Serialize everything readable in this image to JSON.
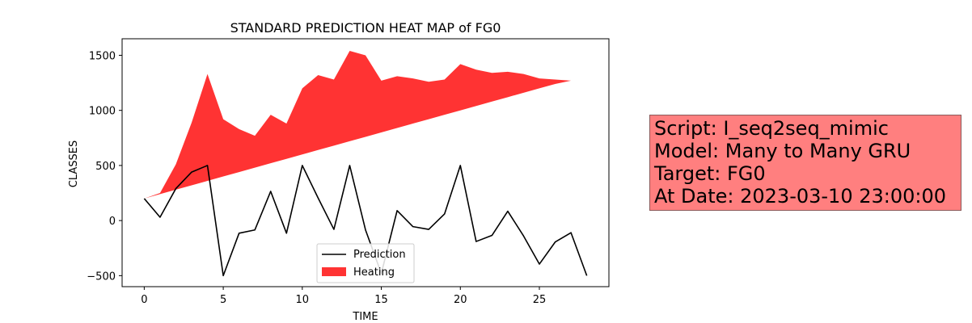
{
  "chart_data": {
    "type": "line",
    "title": "STANDARD PREDICTION HEAT MAP of FG0",
    "xlabel": "TIME",
    "ylabel": "CLASSES",
    "xlim": [
      -1.4,
      29.4
    ],
    "ylim": [
      -600,
      1650
    ],
    "xticks": [
      0,
      5,
      10,
      15,
      20,
      25
    ],
    "yticks": [
      -500,
      0,
      500,
      1000,
      1500
    ],
    "grid": false,
    "legend_placement": "lower center",
    "x": [
      0,
      1,
      2,
      3,
      4,
      5,
      6,
      7,
      8,
      9,
      10,
      11,
      12,
      13,
      14,
      15,
      16,
      17,
      18,
      19,
      20,
      21,
      22,
      23,
      24,
      25,
      26,
      27,
      28
    ],
    "series": [
      {
        "name": "Prediction",
        "type": "line",
        "color": "#000000",
        "values": [
          200,
          30,
          290,
          440,
          500,
          -500,
          -115,
          -85,
          265,
          -115,
          500,
          205,
          -80,
          500,
          -85,
          -480,
          90,
          -55,
          -80,
          60,
          500,
          -190,
          -135,
          85,
          -140,
          -395,
          -195,
          -110,
          -500
        ]
      },
      {
        "name": "Heating",
        "type": "area",
        "color": "#ff0000",
        "opacity": 0.8,
        "lower": [
          200,
          240,
          280,
          320,
          360,
          400,
          440,
          480,
          520,
          560,
          600,
          640,
          680,
          720,
          760,
          800,
          840,
          880,
          920,
          960,
          1000,
          1040,
          1080,
          1120,
          1160,
          1200,
          1240,
          1270,
          1270
        ],
        "upper": [
          200,
          250,
          510,
          890,
          1330,
          920,
          830,
          770,
          960,
          880,
          1200,
          1320,
          1280,
          1540,
          1500,
          1270,
          1310,
          1290,
          1260,
          1280,
          1420,
          1370,
          1340,
          1350,
          1330,
          1290,
          1280,
          1270,
          1270
        ]
      }
    ]
  },
  "info_box": {
    "line1": "Script: I_seq2seq_mimic",
    "line2": "Model: Many to Many GRU",
    "line3": "Target: FG0",
    "line4": "At Date: 2023-03-10 23:00:00",
    "background": "#ff7f7f"
  }
}
